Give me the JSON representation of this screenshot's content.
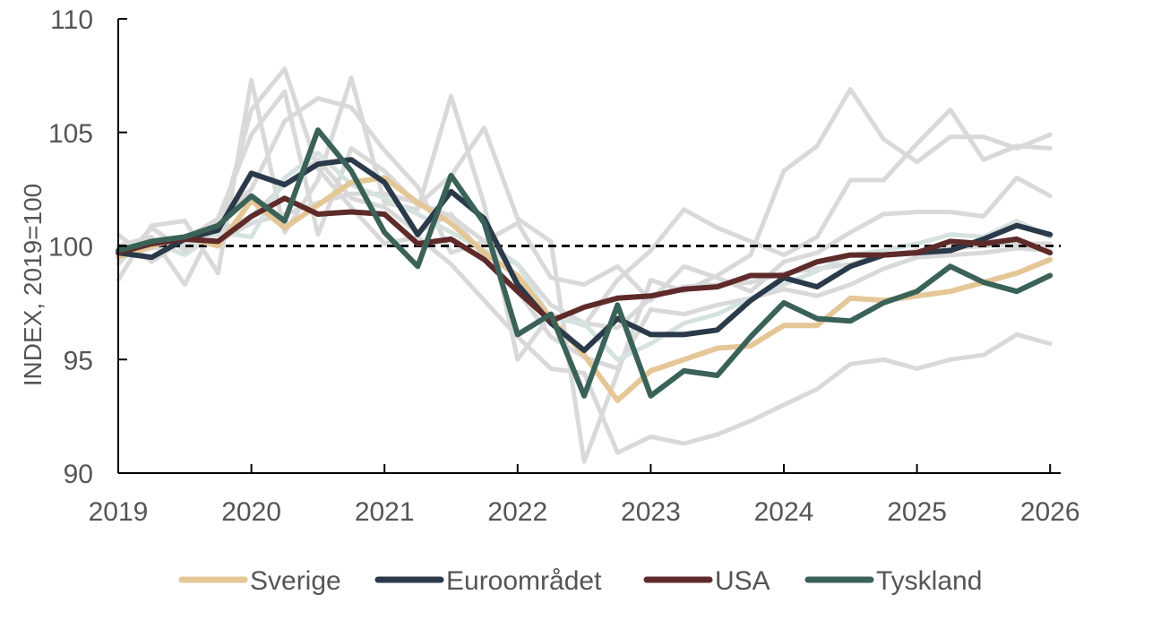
{
  "chart_data": {
    "type": "line",
    "title": "",
    "ylabel": "INDEX, 2019=100",
    "xlabel": "",
    "xlim": [
      2019,
      2026.05
    ],
    "ylim": [
      90,
      110
    ],
    "xticks": [
      "2019",
      "2020",
      "2021",
      "2022",
      "2023",
      "2024",
      "2025",
      "2026"
    ],
    "yticks": [
      "90",
      "95",
      "100",
      "105",
      "110"
    ],
    "reference_line": {
      "y": 100,
      "style": "dashed",
      "color": "#111111"
    },
    "legend_position": "bottom",
    "x": [
      2019.0,
      2019.25,
      2019.5,
      2019.75,
      2020.0,
      2020.25,
      2020.5,
      2020.75,
      2021.0,
      2021.25,
      2021.5,
      2021.75,
      2022.0,
      2022.25,
      2022.5,
      2022.75,
      2023.0,
      2023.25,
      2023.5,
      2023.75,
      2024.0,
      2024.25,
      2024.5,
      2024.75,
      2025.0,
      2025.25,
      2025.5,
      2025.75,
      2026.0
    ],
    "background_series": [
      {
        "color": "#d9d9d9",
        "values": [
          98.5,
          100.9,
          101.1,
          98.8,
          107.3,
          100.6,
          102.9,
          107.4,
          101.9,
          101.6,
          106.6,
          101.8,
          95.0,
          97.0,
          96.5,
          98.5,
          99.8,
          101.6,
          100.8,
          100.2,
          99.6,
          100.4,
          102.9,
          102.9,
          104.5,
          106.0,
          103.8,
          104.4,
          104.3
        ]
      },
      {
        "color": "#d9d9d9",
        "values": [
          99.6,
          99.9,
          100.1,
          100.5,
          106.0,
          107.8,
          103.4,
          101.7,
          100.1,
          100.4,
          99.2,
          97.6,
          96.0,
          94.6,
          94.4,
          90.9,
          91.6,
          91.3,
          91.7,
          92.3,
          93.0,
          93.7,
          94.8,
          95.0,
          94.6,
          95.0,
          95.2,
          96.1,
          95.7
        ]
      },
      {
        "color": "#d9d9d9",
        "values": [
          100.5,
          99.3,
          100.3,
          101.2,
          104.9,
          106.8,
          100.5,
          104.3,
          103.3,
          101.8,
          103.1,
          105.2,
          101.2,
          100.2,
          90.5,
          94.4,
          98.5,
          98.0,
          98.7,
          99.6,
          103.3,
          104.4,
          106.9,
          104.7,
          103.7,
          104.8,
          104.8,
          104.3,
          104.9
        ]
      },
      {
        "color": "#d9d9d9",
        "values": [
          100.0,
          100.4,
          98.3,
          101.2,
          102.5,
          105.5,
          106.5,
          106.1,
          104.2,
          102.6,
          99.7,
          100.2,
          101.0,
          98.6,
          98.3,
          99.1,
          97.6,
          99.1,
          98.6,
          98.0,
          99.3,
          99.7,
          100.6,
          101.4,
          101.5,
          101.5,
          101.3,
          103.0,
          102.2
        ]
      },
      {
        "color": "#d9d9d9",
        "values": [
          99.2,
          100.8,
          99.8,
          100.6,
          101.3,
          102.7,
          103.8,
          102.1,
          101.7,
          100.6,
          101.4,
          99.5,
          98.0,
          96.0,
          95.1,
          94.6,
          97.2,
          97.0,
          97.4,
          97.7,
          98.1,
          97.8,
          98.3,
          99.0,
          99.5,
          99.6,
          99.7,
          99.9,
          99.8
        ]
      },
      {
        "color": "#d9d9d9",
        "values": [
          99.7,
          100.0,
          100.0,
          100.2,
          101.0,
          101.4,
          101.9,
          102.3,
          102.3,
          101.9,
          101.3,
          100.2,
          99.2,
          97.4,
          96.6,
          96.4,
          97.7,
          98.2,
          98.3,
          98.4,
          98.8,
          99.0,
          99.2,
          99.6,
          99.8,
          99.9,
          100.0,
          100.1,
          100.1
        ]
      },
      {
        "color": "#d5e2e0",
        "values": [
          99.9,
          100.2,
          99.6,
          100.6,
          100.4,
          103.0,
          104.1,
          102.7,
          102.1,
          101.4,
          100.6,
          99.8,
          99.2,
          96.8,
          96.6,
          95.0,
          95.7,
          96.6,
          97.0,
          97.7,
          98.3,
          98.9,
          99.6,
          99.8,
          100.1,
          100.5,
          100.4,
          101.1,
          100.4
        ]
      }
    ],
    "series": [
      {
        "name": "Sverige",
        "color": "#e5c797",
        "values": [
          99.5,
          100.0,
          100.4,
          100.0,
          102.0,
          100.8,
          101.8,
          102.8,
          103.0,
          101.9,
          101.0,
          99.7,
          98.7,
          96.8,
          95.2,
          93.2,
          94.5,
          95.0,
          95.5,
          95.6,
          96.5,
          96.5,
          97.7,
          97.6,
          97.8,
          98.0,
          98.4,
          98.8,
          99.4
        ]
      },
      {
        "name": "Euroområdet",
        "color": "#2b3a4a",
        "values": [
          99.7,
          99.5,
          100.3,
          100.7,
          103.2,
          102.7,
          103.6,
          103.8,
          102.8,
          100.5,
          102.4,
          101.2,
          98.3,
          96.6,
          95.4,
          96.8,
          96.1,
          96.1,
          96.3,
          97.6,
          98.6,
          98.2,
          99.1,
          99.6,
          99.7,
          99.8,
          100.3,
          100.9,
          100.5
        ]
      },
      {
        "name": "USA",
        "color": "#5e2a2a",
        "values": [
          99.7,
          100.1,
          100.3,
          100.2,
          101.3,
          102.1,
          101.4,
          101.5,
          101.4,
          100.1,
          100.3,
          99.4,
          98.0,
          96.7,
          97.3,
          97.7,
          97.8,
          98.1,
          98.2,
          98.7,
          98.7,
          99.3,
          99.6,
          99.6,
          99.7,
          100.2,
          100.1,
          100.3,
          99.7
        ]
      },
      {
        "name": "Tyskland",
        "color": "#3a6258",
        "values": [
          99.8,
          100.2,
          100.4,
          100.9,
          102.2,
          101.1,
          105.1,
          103.3,
          100.6,
          99.1,
          103.1,
          101.0,
          96.1,
          97.0,
          93.4,
          97.4,
          93.4,
          94.5,
          94.3,
          96.0,
          97.5,
          96.8,
          96.7,
          97.5,
          98.0,
          99.1,
          98.4,
          98.0,
          98.7
        ]
      }
    ]
  }
}
